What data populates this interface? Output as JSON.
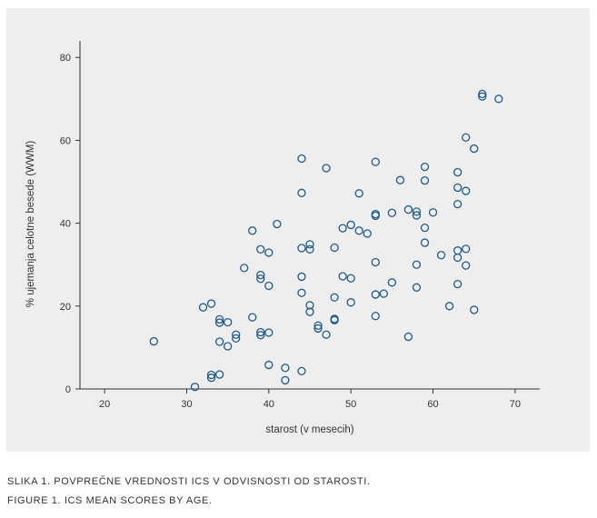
{
  "figure": {
    "caption_sl": "SLIKA 1. POVPREČNE VREDNOSTI ICS V ODVISNOSTI OD STAROSTI.",
    "caption_en": "FIGURE 1. ICS MEAN SCORES BY AGE."
  },
  "colors": {
    "panel": "#eeeeee",
    "marker": "#1f5a8a",
    "axis": "#333333"
  },
  "chart_data": {
    "type": "scatter",
    "title": "",
    "xlabel": "starost (v mesecih)",
    "ylabel": "% ujemanja celotne besede (WWM)",
    "xlim": [
      17,
      73
    ],
    "ylim": [
      0,
      84
    ],
    "xticks": [
      20,
      30,
      40,
      50,
      60,
      70
    ],
    "yticks": [
      0,
      20,
      40,
      60,
      80
    ],
    "grid": false,
    "legend": "none",
    "marker": "open-circle",
    "points": [
      {
        "x": 26,
        "y": 11.5
      },
      {
        "x": 31,
        "y": 0.5
      },
      {
        "x": 32,
        "y": 19.7
      },
      {
        "x": 33,
        "y": 20.6
      },
      {
        "x": 33,
        "y": 3.4
      },
      {
        "x": 33,
        "y": 2.7
      },
      {
        "x": 34,
        "y": 16.8
      },
      {
        "x": 34,
        "y": 16.0
      },
      {
        "x": 34,
        "y": 11.4
      },
      {
        "x": 34,
        "y": 3.5
      },
      {
        "x": 35,
        "y": 16.1
      },
      {
        "x": 35,
        "y": 10.3
      },
      {
        "x": 36,
        "y": 13.1
      },
      {
        "x": 36,
        "y": 12.2
      },
      {
        "x": 37,
        "y": 29.2
      },
      {
        "x": 38,
        "y": 38.2
      },
      {
        "x": 38,
        "y": 17.3
      },
      {
        "x": 39,
        "y": 33.7
      },
      {
        "x": 39,
        "y": 27.5
      },
      {
        "x": 39,
        "y": 26.6
      },
      {
        "x": 39,
        "y": 13.7
      },
      {
        "x": 39,
        "y": 13.0
      },
      {
        "x": 40,
        "y": 32.9
      },
      {
        "x": 40,
        "y": 24.9
      },
      {
        "x": 40,
        "y": 13.6
      },
      {
        "x": 40,
        "y": 5.8
      },
      {
        "x": 41,
        "y": 39.8
      },
      {
        "x": 42,
        "y": 5.1
      },
      {
        "x": 42,
        "y": 2.1
      },
      {
        "x": 44,
        "y": 55.6
      },
      {
        "x": 44,
        "y": 47.3
      },
      {
        "x": 44,
        "y": 34.0
      },
      {
        "x": 44,
        "y": 27.1
      },
      {
        "x": 44,
        "y": 23.2
      },
      {
        "x": 44,
        "y": 4.3
      },
      {
        "x": 45,
        "y": 34.9
      },
      {
        "x": 45,
        "y": 33.7
      },
      {
        "x": 45,
        "y": 20.2
      },
      {
        "x": 45,
        "y": 18.6
      },
      {
        "x": 46,
        "y": 15.3
      },
      {
        "x": 46,
        "y": 14.6
      },
      {
        "x": 47,
        "y": 53.3
      },
      {
        "x": 47,
        "y": 13.1
      },
      {
        "x": 48,
        "y": 34.1
      },
      {
        "x": 48,
        "y": 22.1
      },
      {
        "x": 48,
        "y": 16.9
      },
      {
        "x": 48,
        "y": 16.6
      },
      {
        "x": 49,
        "y": 38.8
      },
      {
        "x": 49,
        "y": 27.2
      },
      {
        "x": 50,
        "y": 39.6
      },
      {
        "x": 50,
        "y": 26.7
      },
      {
        "x": 50,
        "y": 20.9
      },
      {
        "x": 51,
        "y": 47.2
      },
      {
        "x": 51,
        "y": 38.2
      },
      {
        "x": 52,
        "y": 37.5
      },
      {
        "x": 53,
        "y": 54.8
      },
      {
        "x": 53,
        "y": 42.2
      },
      {
        "x": 53,
        "y": 41.8
      },
      {
        "x": 53,
        "y": 30.6
      },
      {
        "x": 53,
        "y": 22.8
      },
      {
        "x": 53,
        "y": 17.6
      },
      {
        "x": 54,
        "y": 23.0
      },
      {
        "x": 55,
        "y": 42.5
      },
      {
        "x": 55,
        "y": 25.7
      },
      {
        "x": 56,
        "y": 50.4
      },
      {
        "x": 57,
        "y": 43.3
      },
      {
        "x": 57,
        "y": 12.6
      },
      {
        "x": 58,
        "y": 42.8
      },
      {
        "x": 58,
        "y": 41.9
      },
      {
        "x": 58,
        "y": 30.0
      },
      {
        "x": 58,
        "y": 24.5
      },
      {
        "x": 59,
        "y": 53.6
      },
      {
        "x": 59,
        "y": 50.3
      },
      {
        "x": 59,
        "y": 38.9
      },
      {
        "x": 59,
        "y": 35.3
      },
      {
        "x": 60,
        "y": 42.6
      },
      {
        "x": 61,
        "y": 32.3
      },
      {
        "x": 62,
        "y": 20.0
      },
      {
        "x": 63,
        "y": 52.3
      },
      {
        "x": 63,
        "y": 48.6
      },
      {
        "x": 63,
        "y": 44.6
      },
      {
        "x": 63,
        "y": 33.4
      },
      {
        "x": 63,
        "y": 31.7
      },
      {
        "x": 63,
        "y": 25.3
      },
      {
        "x": 64,
        "y": 60.7
      },
      {
        "x": 64,
        "y": 47.8
      },
      {
        "x": 64,
        "y": 33.8
      },
      {
        "x": 64,
        "y": 29.8
      },
      {
        "x": 65,
        "y": 58.0
      },
      {
        "x": 65,
        "y": 19.1
      },
      {
        "x": 66,
        "y": 71.2
      },
      {
        "x": 66,
        "y": 70.6
      },
      {
        "x": 68,
        "y": 70.0
      }
    ]
  }
}
